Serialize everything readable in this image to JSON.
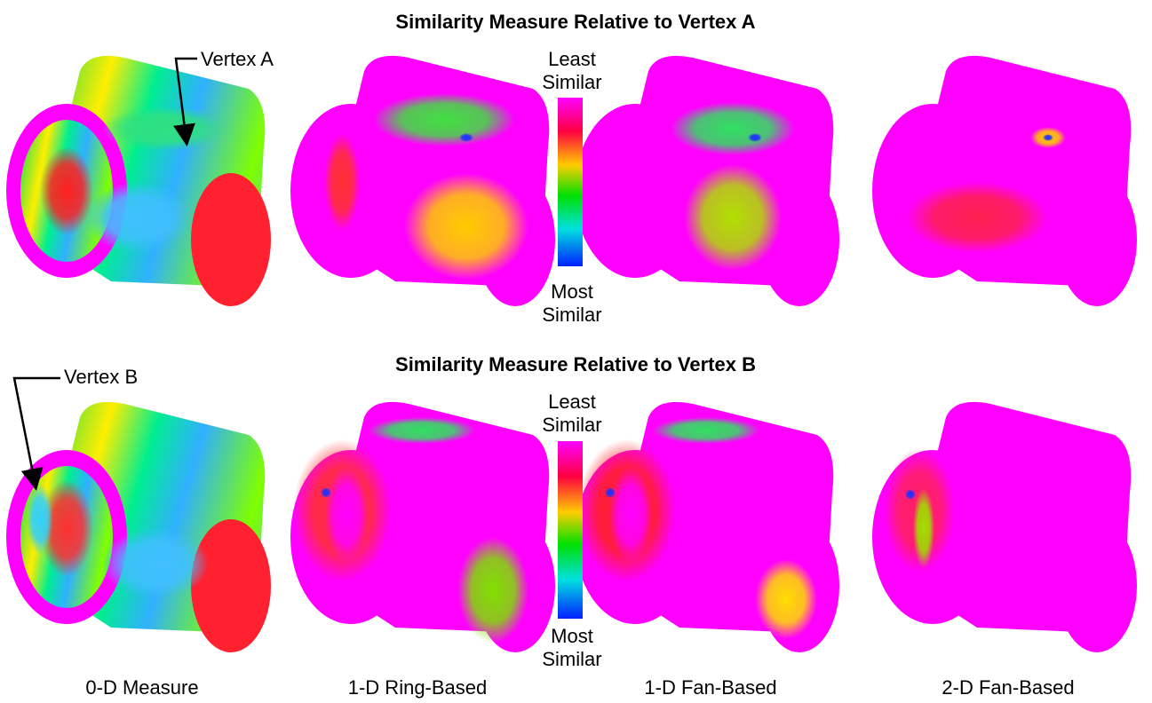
{
  "rows": [
    {
      "title": "Similarity Measure Relative to Vertex A",
      "annotation": "Vertex A",
      "scale": {
        "top": "Least Similar",
        "bottom": "Most Similar"
      }
    },
    {
      "title": "Similarity Measure Relative to Vertex B",
      "annotation": "Vertex B",
      "scale": {
        "top": "Least Similar",
        "bottom": "Most Similar"
      }
    }
  ],
  "captions": [
    "0-D Measure",
    "1-D Ring-Based",
    "1-D Fan-Based",
    "2-D Fan-Based"
  ]
}
